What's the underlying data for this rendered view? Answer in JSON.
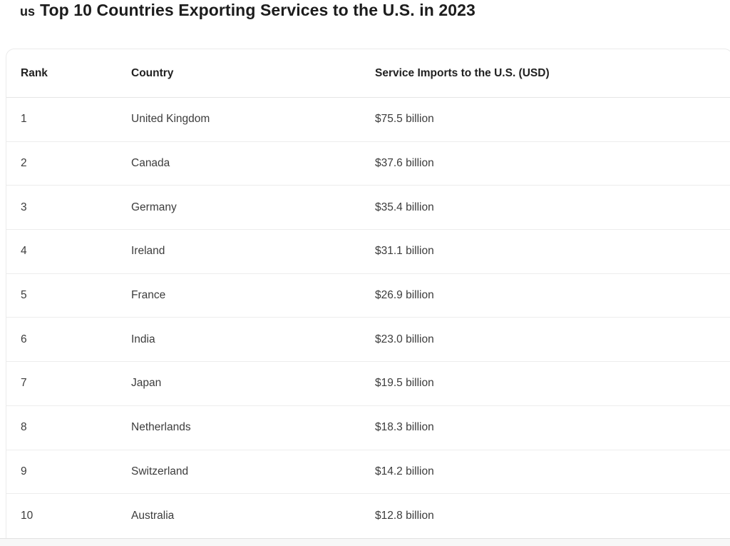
{
  "header": {
    "title_prefix": "us",
    "title": "Top 10 Countries Exporting Services to the U.S. in 2023"
  },
  "table": {
    "columns": [
      "Rank",
      "Country",
      "Service Imports to the U.S. (USD)"
    ],
    "rows": [
      {
        "rank": "1",
        "country": "United Kingdom",
        "value": "$75.5 billion"
      },
      {
        "rank": "2",
        "country": "Canada",
        "value": "$37.6 billion"
      },
      {
        "rank": "3",
        "country": "Germany",
        "value": "$35.4 billion"
      },
      {
        "rank": "4",
        "country": "Ireland",
        "value": "$31.1 billion"
      },
      {
        "rank": "5",
        "country": "France",
        "value": "$26.9 billion"
      },
      {
        "rank": "6",
        "country": "India",
        "value": "$23.0 billion"
      },
      {
        "rank": "7",
        "country": "Japan",
        "value": "$19.5 billion"
      },
      {
        "rank": "8",
        "country": "Netherlands",
        "value": "$18.3 billion"
      },
      {
        "rank": "9",
        "country": "Switzerland",
        "value": "$14.2 billion"
      },
      {
        "rank": "10",
        "country": "Australia",
        "value": "$12.8 billion"
      }
    ]
  },
  "chart_data": {
    "type": "table",
    "title": "us Top 10 Countries Exporting Services to the U.S. in 2023",
    "columns": [
      "Rank",
      "Country",
      "Service Imports to the U.S. (USD)"
    ],
    "categories": [
      "United Kingdom",
      "Canada",
      "Germany",
      "Ireland",
      "France",
      "India",
      "Japan",
      "Netherlands",
      "Switzerland",
      "Australia"
    ],
    "ranks": [
      1,
      2,
      3,
      4,
      5,
      6,
      7,
      8,
      9,
      10
    ],
    "values_billion_usd": [
      75.5,
      37.6,
      35.4,
      31.1,
      26.9,
      23.0,
      19.5,
      18.3,
      14.2,
      12.8
    ],
    "value_labels": [
      "$75.5 billion",
      "$37.6 billion",
      "$35.4 billion",
      "$31.1 billion",
      "$26.9 billion",
      "$23.0 billion",
      "$19.5 billion",
      "$18.3 billion",
      "$14.2 billion",
      "$12.8 billion"
    ],
    "colors": {
      "title_text": "#1c1c1c",
      "header_text": "#212121",
      "body_text": "#3c3c3c",
      "separator": "#ededed",
      "card_border": "#ebebeb",
      "card_background": "#ffffff"
    }
  }
}
